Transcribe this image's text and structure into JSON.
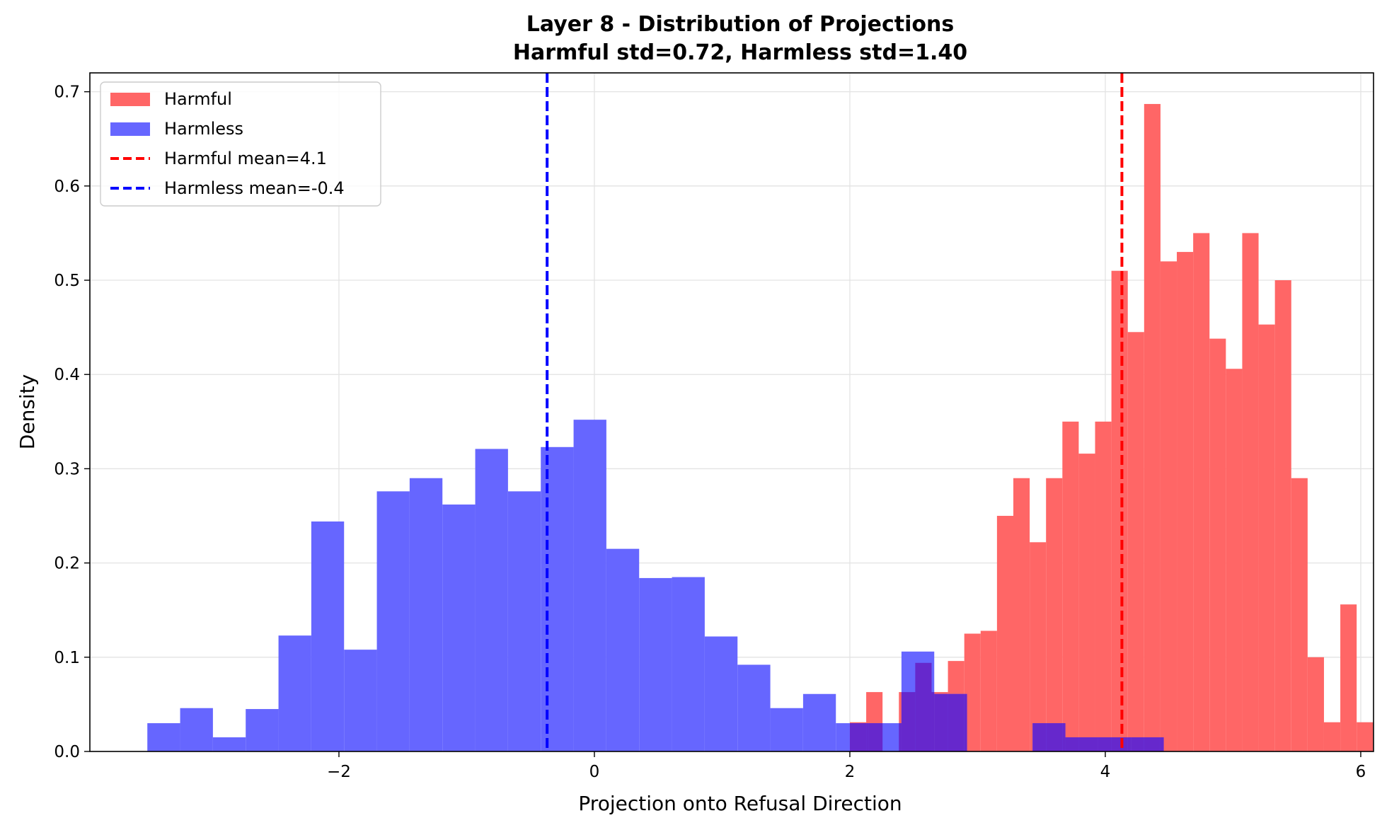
{
  "chart_data": {
    "type": "histogram",
    "title_line1": "Layer 8 - Distribution of Projections",
    "title_line2": "Harmful std=0.72, Harmless std=1.40",
    "xlabel": "Projection onto Refusal Direction",
    "ylabel": "Density",
    "xlim": [
      -3.95,
      6.1
    ],
    "ylim": [
      0,
      0.72
    ],
    "xticks": [
      -2,
      0,
      2,
      4,
      6
    ],
    "xtick_labels": [
      "−2",
      "0",
      "2",
      "4",
      "6"
    ],
    "yticks": [
      0.0,
      0.1,
      0.2,
      0.3,
      0.4,
      0.5,
      0.6,
      0.7
    ],
    "ytick_labels": [
      "0.0",
      "0.1",
      "0.2",
      "0.3",
      "0.4",
      "0.5",
      "0.6",
      "0.7"
    ],
    "grid": true,
    "legend_position": "top-left",
    "colors": {
      "harmful": "#ff6666",
      "harmless": "#6666ff",
      "overlap": "#6628cc",
      "harmful_mean": "#ff0000",
      "harmless_mean": "#0000ff"
    },
    "legend": [
      {
        "label": "Harmful",
        "kind": "patch",
        "color": "#ff6666"
      },
      {
        "label": "Harmless",
        "kind": "patch",
        "color": "#6666ff"
      },
      {
        "label": "Harmful mean=4.1",
        "kind": "dashed",
        "color": "#ff0000"
      },
      {
        "label": "Harmless mean=-0.4",
        "kind": "dashed",
        "color": "#0000ff"
      }
    ],
    "series": [
      {
        "name": "Harmful",
        "bin_start": 2.0,
        "bin_width": 0.128,
        "values": [
          0.031,
          0.063,
          0.0,
          0.063,
          0.094,
          0.063,
          0.096,
          0.125,
          0.128,
          0.25,
          0.29,
          0.222,
          0.29,
          0.35,
          0.316,
          0.35,
          0.51,
          0.445,
          0.687,
          0.52,
          0.53,
          0.55,
          0.438,
          0.406,
          0.55,
          0.453,
          0.5,
          0.29,
          0.1,
          0.031,
          0.156,
          0.031
        ]
      },
      {
        "name": "Harmless",
        "bin_start": -3.5,
        "bin_width": 0.2567,
        "values": [
          0.03,
          0.046,
          0.015,
          0.045,
          0.123,
          0.244,
          0.108,
          0.276,
          0.29,
          0.262,
          0.321,
          0.276,
          0.323,
          0.352,
          0.215,
          0.184,
          0.185,
          0.122,
          0.092,
          0.046,
          0.061,
          0.03,
          0.03,
          0.106,
          0.061,
          0.0,
          0.0,
          0.03,
          0.015,
          0.015,
          0.015
        ]
      }
    ],
    "mean_lines": [
      {
        "name": "Harmful mean",
        "x": 4.13,
        "color": "#ff0000"
      },
      {
        "name": "Harmless mean",
        "x": -0.37,
        "color": "#0000ff"
      }
    ]
  }
}
